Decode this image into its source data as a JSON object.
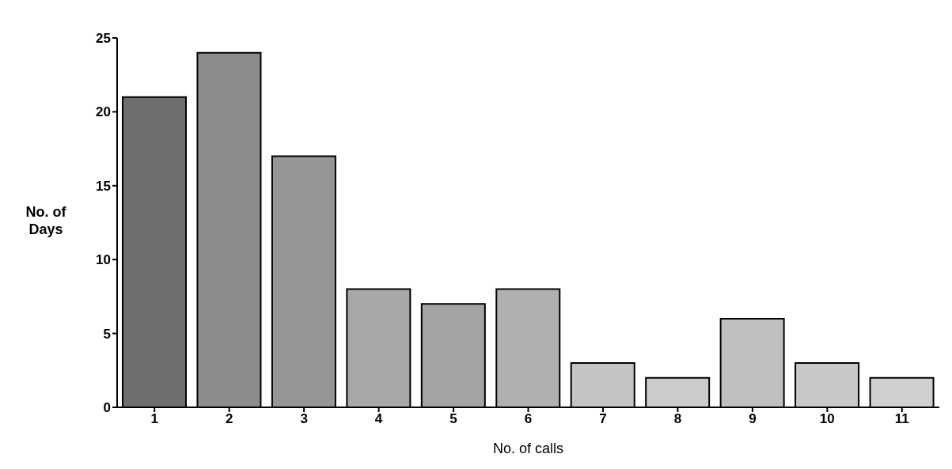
{
  "chart_data": {
    "type": "bar",
    "xlabel": "No. of calls",
    "ylabel": "No. of Days",
    "categories": [
      "1",
      "2",
      "3",
      "4",
      "5",
      "6",
      "7",
      "8",
      "9",
      "10",
      "11"
    ],
    "values": [
      21,
      24,
      17,
      8,
      7,
      8,
      3,
      2,
      6,
      3,
      2
    ],
    "colors": [
      "#6e6e6e",
      "#8c8c8c",
      "#959595",
      "#a8a8a8",
      "#a4a4a4",
      "#b0b0b0",
      "#c4c4c4",
      "#cbcbcb",
      "#c0c0c0",
      "#c8c8c8",
      "#d0d0d0"
    ],
    "ylim": [
      0,
      25
    ],
    "yticks": [
      0,
      5,
      10,
      15,
      20,
      25
    ],
    "grid": false
  }
}
